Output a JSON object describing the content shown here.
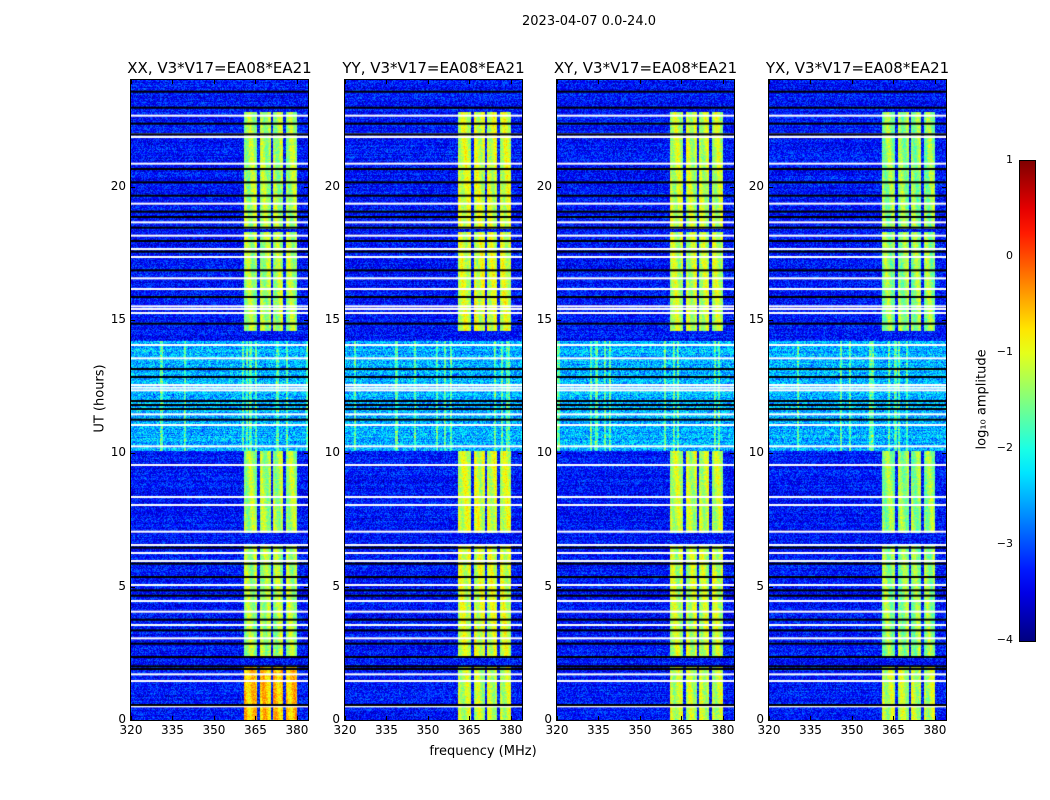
{
  "figure_title": "2023-04-07 0.0-24.0",
  "chart_data": {
    "type": "heatmap",
    "title": "2023-04-07 0.0-24.0",
    "xlabel": "frequency (MHz)",
    "ylabel": "UT (hours)",
    "xlim": [
      320,
      384
    ],
    "ylim": [
      0,
      24
    ],
    "xticks": [
      "320",
      "335",
      "350",
      "365",
      "380"
    ],
    "yticks": [
      "0",
      "5",
      "10",
      "15",
      "20"
    ],
    "xtick_values": [
      320,
      335,
      350,
      365,
      380
    ],
    "ytick_values": [
      0,
      5,
      10,
      15,
      20
    ],
    "panels": [
      {
        "title": "XX, V3*V17=EA08*EA21",
        "band_level": -1.3,
        "early_band_level": -0.6
      },
      {
        "title": "YY, V3*V17=EA08*EA21",
        "band_level": -1.1,
        "early_band_level": -1.2
      },
      {
        "title": "XY, V3*V17=EA08*EA21",
        "band_level": -1.2,
        "early_band_level": -1.2
      },
      {
        "title": "YX, V3*V17=EA08*EA21",
        "band_level": -1.4,
        "early_band_level": -1.2
      }
    ],
    "background_level": -3.3,
    "rfi_subbands_mhz": [
      [
        361,
        365.5
      ],
      [
        366.5,
        370.5
      ],
      [
        371.5,
        375
      ],
      [
        376,
        380
      ]
    ],
    "rfi_active_hours": [
      [
        0,
        2.0
      ],
      [
        2.4,
        6.6
      ],
      [
        7.0,
        10.1
      ],
      [
        14.6,
        18.3
      ],
      [
        18.4,
        22.8
      ]
    ],
    "broadband_rfi_hours": [
      [
        10.1,
        14.2
      ]
    ],
    "flagged_white_hours": [
      0.55,
      1.5,
      1.75,
      3.1,
      3.6,
      4.1,
      4.5,
      5.1,
      6.0,
      6.3,
      6.6,
      7.1,
      8.1,
      8.4,
      9.6,
      10.3,
      11.1,
      11.5,
      12.4,
      12.5,
      12.6,
      13.6,
      14.1,
      15.3,
      15.45,
      15.55,
      16.2,
      16.6,
      17.4,
      17.7,
      18.2,
      18.7,
      19.4,
      20.9,
      21.9,
      22.0,
      22.7
    ],
    "flagged_black_hours": [
      0.6,
      1.95,
      2.05,
      2.4,
      2.9,
      3.4,
      3.8,
      4.7,
      4.9,
      5.4,
      5.9,
      6.5,
      11.3,
      11.7,
      11.85,
      12.0,
      12.9,
      13.2,
      14.9,
      15.9,
      16.9,
      17.6,
      18.0,
      18.5,
      18.9,
      19.1,
      19.7,
      20.2,
      20.7,
      22.0,
      22.4,
      23.0,
      23.6
    ],
    "colorbar": {
      "label": "log₁₀ amplitude",
      "range": [
        -4,
        1
      ],
      "ticks": [
        "−4",
        "−3",
        "−2",
        "−1",
        "0",
        "1"
      ],
      "tick_values": [
        -4,
        -3,
        -2,
        -1,
        0,
        1
      ],
      "colormap": "jet"
    }
  }
}
